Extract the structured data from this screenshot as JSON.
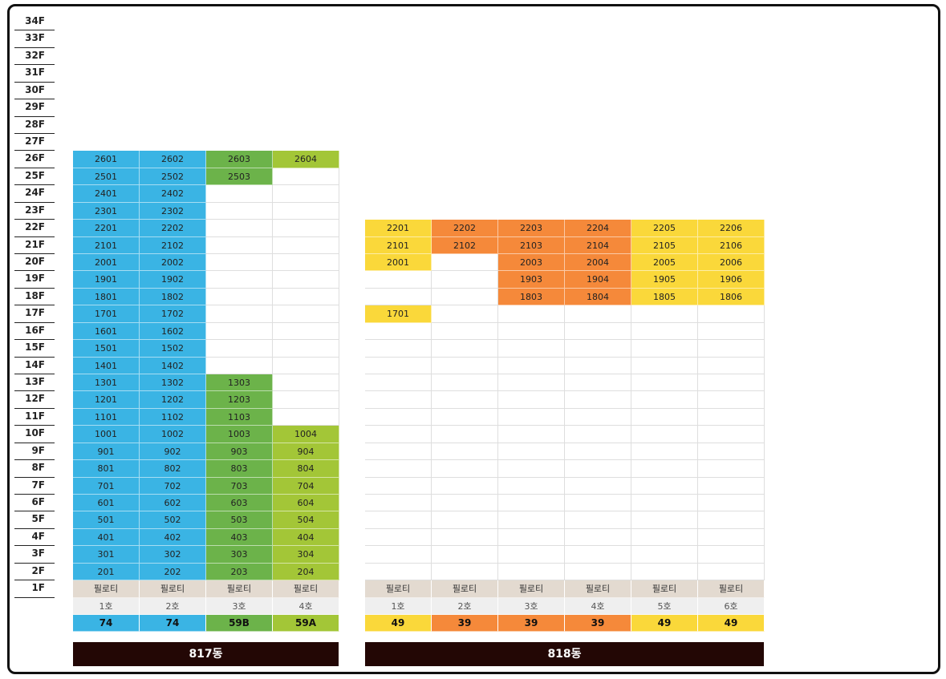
{
  "floors": [
    "34F",
    "33F",
    "32F",
    "31F",
    "30F",
    "29F",
    "28F",
    "27F",
    "26F",
    "25F",
    "24F",
    "23F",
    "22F",
    "21F",
    "20F",
    "19F",
    "18F",
    "17F",
    "16F",
    "15F",
    "14F",
    "13F",
    "12F",
    "11F",
    "10F",
    "9F",
    "8F",
    "7F",
    "6F",
    "5F",
    "4F",
    "3F",
    "2F",
    "1F"
  ],
  "colors": {
    "blue": "#3ab4e4",
    "green": "#6cb34a",
    "lime": "#a3c637",
    "yellow": "#fad83a",
    "orange": "#f5893a",
    "name_bar": "#230705",
    "piloti": "#e3dad0",
    "ho": "#efefef"
  },
  "buildings": [
    {
      "id": "817",
      "name": "817동",
      "columns": [
        {
          "ho": "1호",
          "type": "74",
          "color": "blue",
          "piloti": "필로티",
          "units": [
            "2601",
            "2501",
            "2401",
            "2301",
            "2201",
            "2101",
            "2001",
            "1901",
            "1801",
            "1701",
            "1601",
            "1501",
            "1401",
            "1301",
            "1201",
            "1101",
            "1001",
            "901",
            "801",
            "701",
            "601",
            "501",
            "401",
            "301",
            "201"
          ]
        },
        {
          "ho": "2호",
          "type": "74",
          "color": "blue",
          "piloti": "필로티",
          "units": [
            "2602",
            "2502",
            "2402",
            "2302",
            "2202",
            "2102",
            "2002",
            "1902",
            "1802",
            "1702",
            "1602",
            "1502",
            "1402",
            "1302",
            "1202",
            "1102",
            "1002",
            "902",
            "802",
            "702",
            "602",
            "502",
            "402",
            "302",
            "202"
          ]
        },
        {
          "ho": "3호",
          "type": "59B",
          "color": "green",
          "piloti": "필로티",
          "units": [
            "2603",
            "2503",
            "",
            "",
            "",
            "",
            "",
            "",
            "",
            "",
            "",
            "",
            "",
            "1303",
            "1203",
            "1103",
            "1003",
            "903",
            "803",
            "703",
            "603",
            "503",
            "403",
            "303",
            "203"
          ]
        },
        {
          "ho": "4호",
          "type": "59A",
          "color": "lime",
          "piloti": "필로티",
          "units": [
            "2604",
            "",
            "",
            "",
            "",
            "",
            "",
            "",
            "",
            "",
            "",
            "",
            "",
            "",
            "",
            "",
            "1004",
            "904",
            "804",
            "704",
            "604",
            "504",
            "404",
            "304",
            "204"
          ]
        }
      ]
    },
    {
      "id": "818",
      "name": "818동",
      "columns": [
        {
          "ho": "1호",
          "type": "49",
          "color": "yellow",
          "piloti": "필로티",
          "units": [
            "2201",
            "2101",
            "2001",
            "",
            "",
            "1701",
            "",
            "",
            "",
            "",
            "",
            "",
            "",
            "",
            "",
            "",
            "",
            "",
            "",
            "",
            ""
          ]
        },
        {
          "ho": "2호",
          "type": "39",
          "color": "orange",
          "piloti": "필로티",
          "units": [
            "2202",
            "2102",
            "",
            "",
            "",
            "",
            "",
            "",
            "",
            "",
            "",
            "",
            "",
            "",
            "",
            "",
            "",
            "",
            "",
            "",
            ""
          ]
        },
        {
          "ho": "3호",
          "type": "39",
          "color": "orange",
          "piloti": "필로티",
          "units": [
            "2203",
            "2103",
            "2003",
            "1903",
            "1803",
            "",
            "",
            "",
            "",
            "",
            "",
            "",
            "",
            "",
            "",
            "",
            "",
            "",
            "",
            "",
            ""
          ]
        },
        {
          "ho": "4호",
          "type": "39",
          "color": "orange",
          "piloti": "필로티",
          "units": [
            "2204",
            "2104",
            "2004",
            "1904",
            "1804",
            "",
            "",
            "",
            "",
            "",
            "",
            "",
            "",
            "",
            "",
            "",
            "",
            "",
            "",
            "",
            ""
          ]
        },
        {
          "ho": "5호",
          "type": "49",
          "color": "yellow",
          "piloti": "필로티",
          "units": [
            "2205",
            "2105",
            "2005",
            "1905",
            "1805",
            "",
            "",
            "",
            "",
            "",
            "",
            "",
            "",
            "",
            "",
            "",
            "",
            "",
            "",
            "",
            ""
          ]
        },
        {
          "ho": "6호",
          "type": "49",
          "color": "yellow",
          "piloti": "필로티",
          "units": [
            "2206",
            "2106",
            "2006",
            "1906",
            "1806",
            "",
            "",
            "",
            "",
            "",
            "",
            "",
            "",
            "",
            "",
            "",
            "",
            "",
            "",
            "",
            ""
          ]
        }
      ]
    }
  ]
}
